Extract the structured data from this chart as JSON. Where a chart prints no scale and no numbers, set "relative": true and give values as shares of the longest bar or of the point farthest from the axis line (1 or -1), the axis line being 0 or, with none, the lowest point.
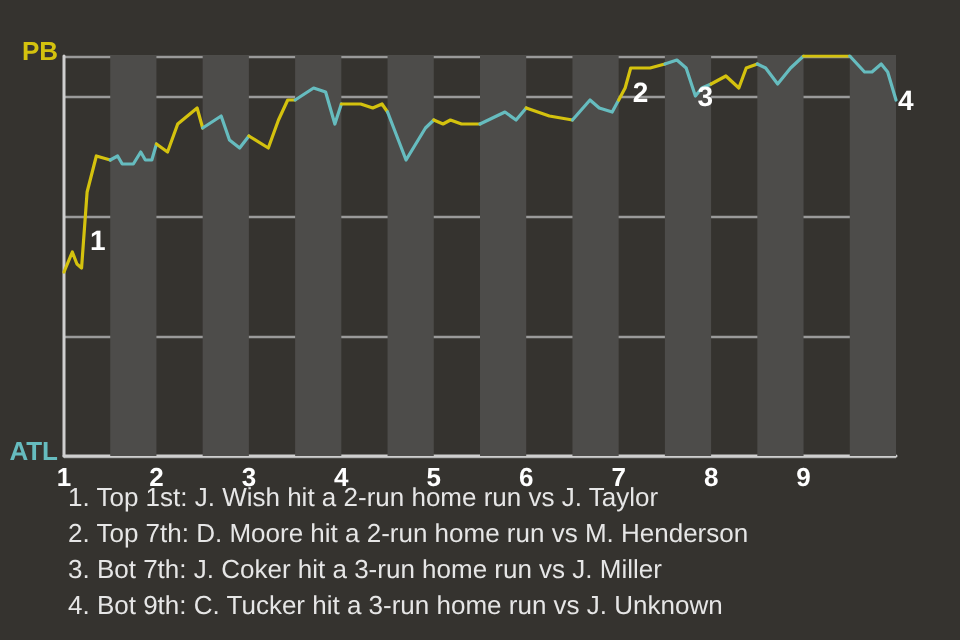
{
  "chart_data": {
    "type": "line",
    "relative": true,
    "xlim": [
      1,
      10
    ],
    "xticks": [
      1,
      2,
      3,
      4,
      5,
      6,
      7,
      8,
      9
    ],
    "series": [
      {
        "name": "PB",
        "color": "#d4c20e",
        "x": [
          1,
          1.09,
          1.14,
          1.19,
          1.25,
          1.35,
          1.5
        ],
        "values": [
          0.46,
          0.51,
          0.48,
          0.47,
          0.66,
          0.75,
          0.74
        ]
      },
      {
        "name": "ATL",
        "color": "#66bcbf",
        "x": [
          1.5,
          1.58,
          1.63,
          1.75,
          1.83,
          1.88,
          1.95,
          2
        ],
        "values": [
          0.74,
          0.75,
          0.73,
          0.73,
          0.76,
          0.74,
          0.74,
          0.78
        ]
      },
      {
        "color": "#d4c20e",
        "x": [
          2,
          2.12,
          2.23,
          2.44,
          2.5
        ],
        "values": [
          0.78,
          0.76,
          0.83,
          0.87,
          0.82
        ]
      },
      {
        "color": "#66bcbf",
        "x": [
          2.5,
          2.7,
          2.79,
          2.9,
          3
        ],
        "values": [
          0.82,
          0.85,
          0.79,
          0.77,
          0.8
        ]
      },
      {
        "color": "#d4c20e",
        "x": [
          3,
          3.21,
          3.32,
          3.42,
          3.5
        ],
        "values": [
          0.8,
          0.77,
          0.84,
          0.89,
          0.89
        ]
      },
      {
        "color": "#66bcbf",
        "x": [
          3.5,
          3.7,
          3.83,
          3.93,
          4
        ],
        "values": [
          0.89,
          0.92,
          0.91,
          0.83,
          0.88
        ]
      },
      {
        "color": "#d4c20e",
        "x": [
          4,
          4.21,
          4.34,
          4.44,
          4.5
        ],
        "values": [
          0.88,
          0.88,
          0.87,
          0.88,
          0.86
        ]
      },
      {
        "color": "#66bcbf",
        "x": [
          4.5,
          4.7,
          4.91,
          5
        ],
        "values": [
          0.86,
          0.74,
          0.82,
          0.84
        ]
      },
      {
        "color": "#d4c20e",
        "x": [
          5,
          5.1,
          5.18,
          5.3,
          5.42,
          5.5
        ],
        "values": [
          0.84,
          0.83,
          0.84,
          0.83,
          0.83,
          0.83
        ]
      },
      {
        "color": "#66bcbf",
        "x": [
          5.5,
          5.77,
          5.89,
          6
        ],
        "values": [
          0.83,
          0.86,
          0.84,
          0.87
        ]
      },
      {
        "color": "#d4c20e",
        "x": [
          6,
          6.25,
          6.5
        ],
        "values": [
          0.87,
          0.85,
          0.84
        ]
      },
      {
        "color": "#66bcbf",
        "x": [
          6.5,
          6.69,
          6.79,
          6.93,
          7
        ],
        "values": [
          0.84,
          0.89,
          0.87,
          0.86,
          0.89
        ]
      },
      {
        "color": "#d4c20e",
        "x": [
          7,
          7.07,
          7.13,
          7.34,
          7.5
        ],
        "values": [
          0.89,
          0.92,
          0.97,
          0.97,
          0.98
        ]
      },
      {
        "color": "#66bcbf",
        "x": [
          7.5,
          7.63,
          7.73,
          7.83,
          7.9,
          8
        ],
        "values": [
          0.98,
          0.99,
          0.97,
          0.9,
          0.92,
          0.93
        ]
      },
      {
        "color": "#d4c20e",
        "x": [
          8,
          8.16,
          8.3,
          8.38,
          8.5
        ],
        "values": [
          0.93,
          0.95,
          0.92,
          0.97,
          0.98
        ]
      },
      {
        "color": "#66bcbf",
        "x": [
          8.5,
          8.59,
          8.72,
          8.86,
          9
        ],
        "values": [
          0.98,
          0.97,
          0.93,
          0.97,
          1
        ]
      },
      {
        "color": "#d4c20e",
        "x": [
          9,
          9.5
        ],
        "values": [
          1,
          1
        ]
      },
      {
        "color": "#66bcbf",
        "x": [
          9.5,
          9.66,
          9.74,
          9.84,
          9.91,
          10
        ],
        "values": [
          1,
          0.96,
          0.96,
          0.98,
          0.96,
          0.89
        ]
      }
    ],
    "grid": "y",
    "legend": false,
    "marker": "none",
    "line_style": "solid",
    "bands": [
      {
        "axis": "x",
        "from": 1.5,
        "to": 2,
        "color": "#4d4c4a"
      },
      {
        "axis": "x",
        "from": 2.5,
        "to": 3,
        "color": "#4d4c4a"
      },
      {
        "axis": "x",
        "from": 3.5,
        "to": 4,
        "color": "#4d4c4a"
      },
      {
        "axis": "x",
        "from": 4.5,
        "to": 5,
        "color": "#4d4c4a"
      },
      {
        "axis": "x",
        "from": 5.5,
        "to": 6,
        "color": "#4d4c4a"
      },
      {
        "axis": "x",
        "from": 6.5,
        "to": 7,
        "color": "#4d4c4a"
      },
      {
        "axis": "x",
        "from": 7.5,
        "to": 8,
        "color": "#4d4c4a"
      },
      {
        "axis": "x",
        "from": 8.5,
        "to": 9,
        "color": "#4d4c4a"
      },
      {
        "axis": "x",
        "from": 9.5,
        "to": 10,
        "color": "#4d4c4a"
      }
    ],
    "annotations": [
      {
        "text": "1",
        "x": 1.26,
        "y": 0.54
      },
      {
        "text": "2",
        "x": 7.13,
        "y": 0.91
      },
      {
        "text": "3",
        "x": 7.83,
        "y": 0.9
      },
      {
        "text": "4",
        "x": 10,
        "y": 0.89
      },
      "1. Top 1st: J. Wish hit a 2-run home run vs J. Taylor",
      "2. Top 7th: D. Moore hit a 2-run home run vs M. Henderson",
      "3. Bot 7th: J. Coker hit a 3-run home run vs J. Miller",
      "4. Bot 9th: C. Tucker hit a 3-run home run vs J. Unknown"
    ]
  }
}
